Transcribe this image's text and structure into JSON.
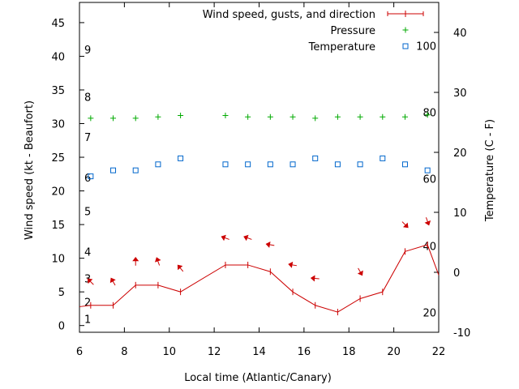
{
  "chart_data": {
    "type": "line",
    "xlabel": "Local time (Atlantic/Canary)",
    "ylabel": "Wind speed (kt - Beaufort)",
    "y2label": "Temperature (C - F)",
    "xlim": [
      6,
      22
    ],
    "ylim": [
      -1,
      48
    ],
    "y2lim": [
      -10,
      45
    ],
    "xticks": [
      6,
      8,
      10,
      12,
      14,
      16,
      18,
      20,
      22
    ],
    "yticks": [
      0,
      5,
      10,
      15,
      20,
      25,
      30,
      35,
      40,
      45
    ],
    "y2ticks": [
      -10,
      0,
      10,
      20,
      30,
      40
    ],
    "beaufort_labels": [
      {
        "label": "1",
        "y": 1
      },
      {
        "label": "2",
        "y": 3.5
      },
      {
        "label": "3",
        "y": 7
      },
      {
        "label": "4",
        "y": 11
      },
      {
        "label": "5",
        "y": 17
      },
      {
        "label": "6",
        "y": 22
      },
      {
        "label": "7",
        "y": 28
      },
      {
        "label": "8",
        "y": 34
      },
      {
        "label": "9",
        "y": 41
      }
    ],
    "fahrenheit_labels": [
      {
        "label": "20",
        "y2": -6.7
      },
      {
        "label": "40",
        "y2": 4.4
      },
      {
        "label": "60",
        "y2": 15.6
      },
      {
        "label": "80",
        "y2": 26.7
      },
      {
        "label": "100",
        "y2": 37.8
      }
    ],
    "legend_position": "top-right",
    "grid": false,
    "series": [
      {
        "name": "Wind speed, gusts, and direction",
        "color": "#cc0000",
        "x": [
          6,
          6.5,
          7.5,
          8.5,
          9.5,
          10.5,
          12.5,
          13.5,
          14.5,
          15.5,
          16.5,
          17.5,
          18.5,
          19.5,
          20.5,
          21.5,
          22
        ],
        "y": [
          2.8,
          3,
          3,
          6,
          6,
          5,
          9,
          9,
          8,
          5,
          3,
          2,
          4,
          5,
          11,
          12,
          7.5
        ]
      },
      {
        "name": "Pressure",
        "color": "#00aa00",
        "x": [
          6.5,
          7.5,
          8.5,
          9.5,
          10.5,
          12.5,
          13.5,
          14.5,
          15.5,
          16.5,
          17.5,
          18.5,
          19.5,
          20.5,
          21.5
        ],
        "y": [
          30.8,
          30.8,
          30.8,
          31,
          31.2,
          31.2,
          31,
          31,
          31,
          30.8,
          31,
          31,
          31,
          31,
          31.3
        ]
      },
      {
        "name": "Temperature",
        "color": "#0066cc",
        "axis": "right",
        "x": [
          6.5,
          7.5,
          8.5,
          9.5,
          10.5,
          12.5,
          13.5,
          14.5,
          15.5,
          16.5,
          17.5,
          18.5,
          19.5,
          20.5,
          21.5
        ],
        "y": [
          16,
          17,
          17,
          18,
          19,
          18,
          18,
          18,
          18,
          19,
          18,
          18,
          19,
          18,
          17
        ]
      }
    ],
    "wind_arrows": [
      {
        "x": 6.5,
        "y": 6.5,
        "from_deg": 135
      },
      {
        "x": 7.5,
        "y": 6.5,
        "from_deg": 150
      },
      {
        "x": 8.5,
        "y": 9.5,
        "from_deg": 180
      },
      {
        "x": 9.5,
        "y": 9.5,
        "from_deg": 160
      },
      {
        "x": 10.5,
        "y": 8.5,
        "from_deg": 140
      },
      {
        "x": 12.5,
        "y": 13,
        "from_deg": 110
      },
      {
        "x": 13.5,
        "y": 13,
        "from_deg": 110
      },
      {
        "x": 14.5,
        "y": 12,
        "from_deg": 100
      },
      {
        "x": 15.5,
        "y": 9,
        "from_deg": 100
      },
      {
        "x": 16.5,
        "y": 7,
        "from_deg": 95
      },
      {
        "x": 18.5,
        "y": 8,
        "from_deg": 330
      },
      {
        "x": 20.5,
        "y": 15,
        "from_deg": 315
      },
      {
        "x": 21.5,
        "y": 15.5,
        "from_deg": 340
      }
    ]
  }
}
